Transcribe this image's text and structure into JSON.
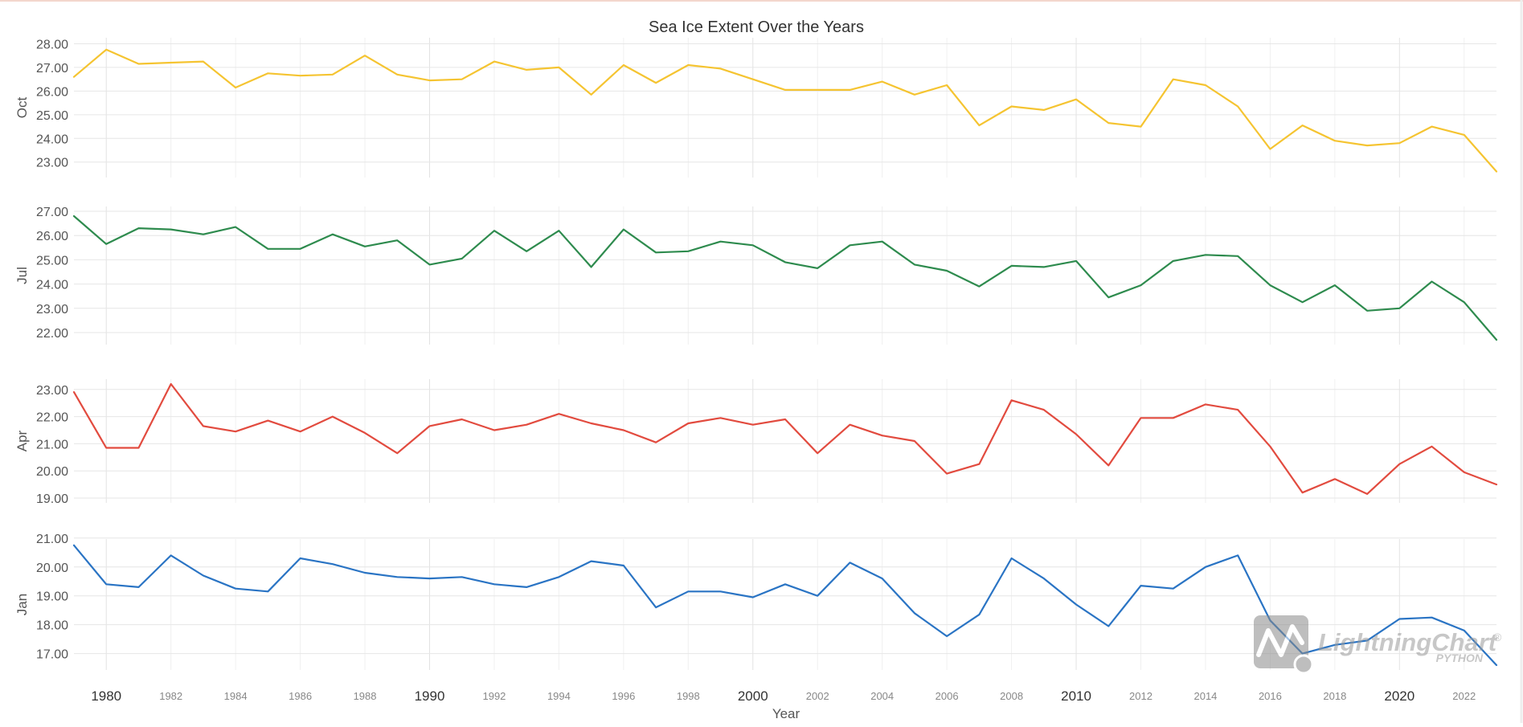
{
  "chart_data": {
    "type": "line",
    "title": "Sea Ice Extent Over the Years",
    "xlabel": "Year",
    "xlim": [
      1979,
      2023
    ],
    "x_major_ticks": [
      "1980",
      "1990",
      "2000",
      "2010",
      "2020"
    ],
    "x_minor_ticks": [
      "1982",
      "1984",
      "1986",
      "1988",
      "1992",
      "1994",
      "1996",
      "1998",
      "2002",
      "2004",
      "2006",
      "2008",
      "2012",
      "2014",
      "2016",
      "2018",
      "2022"
    ],
    "x": [
      1979,
      1980,
      1981,
      1982,
      1983,
      1984,
      1985,
      1986,
      1987,
      1988,
      1989,
      1990,
      1991,
      1992,
      1993,
      1994,
      1995,
      1996,
      1997,
      1998,
      1999,
      2000,
      2001,
      2002,
      2003,
      2004,
      2005,
      2006,
      2007,
      2008,
      2009,
      2010,
      2011,
      2012,
      2013,
      2014,
      2015,
      2016,
      2017,
      2018,
      2019,
      2020,
      2021,
      2022,
      2023
    ],
    "grid": true,
    "panels": [
      {
        "ylabel": "Oct",
        "color": "#f5c431",
        "ylim": [
          22.55,
          28.05
        ],
        "yticks": [
          "28.00",
          "27.00",
          "26.00",
          "25.00",
          "24.00",
          "23.00"
        ],
        "values": [
          26.6,
          27.75,
          27.15,
          27.2,
          27.25,
          26.15,
          26.75,
          26.65,
          26.7,
          27.5,
          26.7,
          26.45,
          26.5,
          27.25,
          26.9,
          27.0,
          25.85,
          27.1,
          26.35,
          27.1,
          26.95,
          26.5,
          26.05,
          26.05,
          26.05,
          26.4,
          25.85,
          26.25,
          24.55,
          25.35,
          25.2,
          25.65,
          24.65,
          24.5,
          26.5,
          26.25,
          25.35,
          23.55,
          24.55,
          23.9,
          23.7,
          23.8,
          24.5,
          24.15,
          22.6
        ]
      },
      {
        "ylabel": "Jul",
        "color": "#2e8b4e",
        "ylim": [
          21.7,
          27.0
        ],
        "yticks": [
          "27.00",
          "26.00",
          "25.00",
          "24.00",
          "23.00",
          "22.00"
        ],
        "values": [
          26.8,
          25.65,
          26.3,
          26.25,
          26.05,
          26.35,
          25.45,
          25.45,
          26.05,
          25.55,
          25.8,
          24.8,
          25.05,
          26.2,
          25.35,
          26.2,
          24.7,
          26.25,
          25.3,
          25.35,
          25.75,
          25.6,
          24.9,
          24.65,
          25.6,
          25.75,
          24.8,
          24.55,
          23.9,
          24.75,
          24.7,
          24.95,
          23.45,
          23.95,
          24.95,
          25.2,
          25.15,
          23.95,
          23.25,
          23.95,
          22.9,
          23.0,
          24.1,
          23.25,
          21.7
        ]
      },
      {
        "ylabel": "Apr",
        "color": "#e24b3f",
        "ylim": [
          19.0,
          23.2
        ],
        "yticks": [
          "23.00",
          "22.00",
          "21.00",
          "20.00",
          "19.00"
        ],
        "values": [
          22.9,
          20.85,
          20.85,
          23.2,
          21.65,
          21.45,
          21.85,
          21.45,
          22.0,
          21.4,
          20.65,
          21.65,
          21.9,
          21.5,
          21.7,
          22.1,
          21.75,
          21.5,
          21.05,
          21.75,
          21.95,
          21.7,
          21.9,
          20.65,
          21.7,
          21.3,
          21.1,
          19.9,
          20.25,
          22.6,
          22.25,
          21.35,
          20.2,
          21.95,
          21.95,
          22.45,
          22.25,
          20.9,
          19.2,
          19.7,
          19.15,
          20.25,
          20.9,
          19.95,
          19.5
        ]
      },
      {
        "ylabel": "Jan",
        "color": "#2a74c4",
        "ylim": [
          16.6,
          20.8
        ],
        "yticks": [
          "21.00",
          "20.00",
          "19.00",
          "18.00",
          "17.00"
        ],
        "values": [
          20.75,
          19.4,
          19.3,
          20.4,
          19.7,
          19.25,
          19.15,
          20.3,
          20.1,
          19.8,
          19.65,
          19.6,
          19.65,
          19.4,
          19.3,
          19.65,
          20.2,
          20.05,
          18.6,
          19.15,
          19.15,
          18.95,
          19.4,
          19.0,
          20.15,
          19.6,
          18.4,
          17.6,
          18.35,
          20.3,
          19.6,
          18.7,
          17.95,
          19.35,
          19.25,
          20.0,
          20.4,
          18.15,
          17.0,
          17.3,
          17.45,
          18.2,
          18.25,
          17.8,
          16.6
        ]
      }
    ],
    "watermark": {
      "brand": "LightningChart",
      "sub": "PYTHON",
      "registered": "®"
    }
  }
}
